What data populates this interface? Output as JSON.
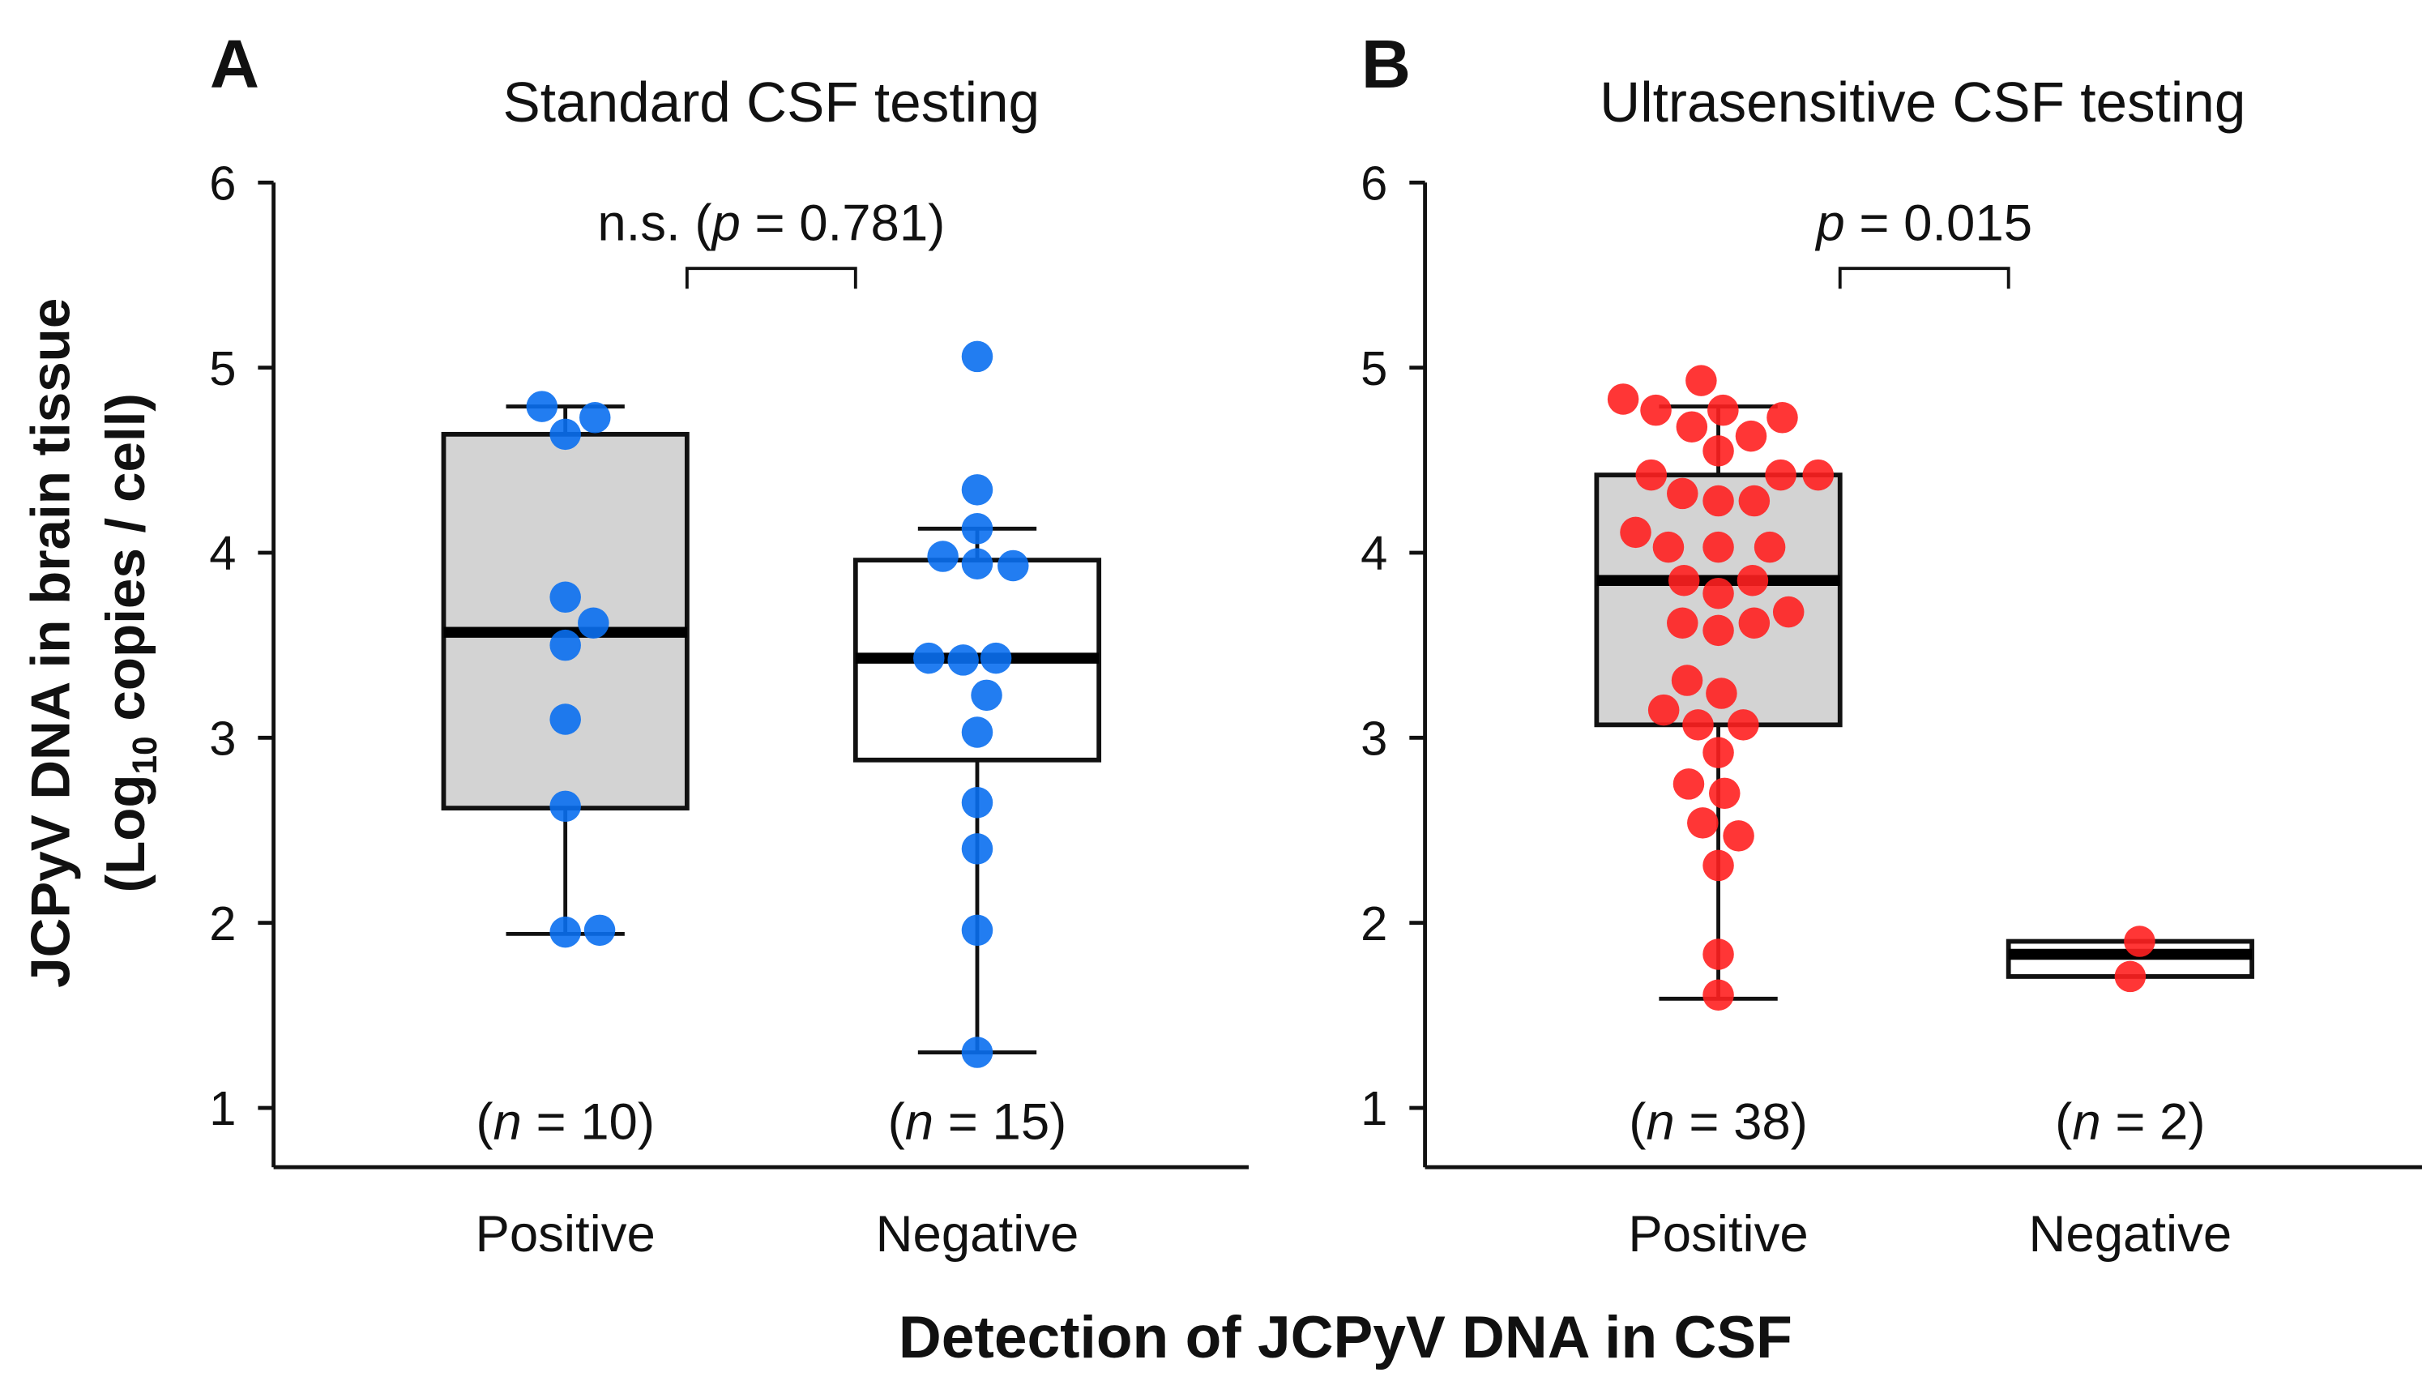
{
  "chart_data": [
    {
      "type": "box",
      "panel_letter": "A",
      "title": "Standard CSF testing",
      "ylim": [
        1,
        6
      ],
      "yticks": [
        "1",
        "2",
        "3",
        "4",
        "5",
        "6"
      ],
      "categories": [
        "Positive",
        "Negative"
      ],
      "n_labels": [
        "(n = 10)",
        "(n = 15)"
      ],
      "n_prefix": [
        "(",
        "("
      ],
      "n_italic": [
        "n",
        "n"
      ],
      "n_values": [
        " = 10)",
        " = 15)"
      ],
      "comparison": {
        "prefix": "n.s. (",
        "p_symbol": "p",
        "suffix": " = 0.781)"
      },
      "fill": [
        "#d3d3d3",
        "#ffffff"
      ],
      "point_color": "#0a6ff0",
      "groups": [
        {
          "name": "Positive",
          "q1": 2.62,
          "median": 3.57,
          "q3": 4.64,
          "whisker_low": 1.94,
          "whisker_high": 4.79,
          "points": [
            4.79,
            4.73,
            4.64,
            3.76,
            3.62,
            3.5,
            3.1,
            2.63,
            1.95,
            1.96
          ]
        },
        {
          "name": "Negative",
          "q1": 2.88,
          "median": 3.43,
          "q3": 3.96,
          "whisker_low": 1.3,
          "whisker_high": 4.13,
          "points": [
            5.06,
            4.34,
            4.13,
            3.98,
            3.94,
            3.93,
            3.43,
            3.42,
            3.43,
            3.23,
            3.03,
            2.65,
            2.4,
            1.96,
            1.3
          ]
        }
      ]
    },
    {
      "type": "box",
      "panel_letter": "B",
      "title": "Ultrasensitive CSF testing",
      "ylim": [
        1,
        6
      ],
      "yticks": [
        "1",
        "2",
        "3",
        "4",
        "5",
        "6"
      ],
      "categories": [
        "Positive",
        "Negative"
      ],
      "n_labels": [
        "(n = 38)",
        "(n = 2)"
      ],
      "n_prefix": [
        "(",
        "("
      ],
      "n_italic": [
        "n",
        "n"
      ],
      "n_values": [
        " = 38)",
        " = 2)"
      ],
      "comparison": {
        "prefix": "",
        "p_symbol": "p",
        "suffix": " = 0.015"
      },
      "fill": [
        "#d3d3d3",
        "#ffffff"
      ],
      "point_color": "#ff2020",
      "groups": [
        {
          "name": "Positive",
          "q1": 3.07,
          "median": 3.85,
          "q3": 4.42,
          "whisker_low": 1.59,
          "whisker_high": 4.79,
          "points": [
            4.93,
            4.83,
            4.77,
            4.77,
            4.73,
            4.68,
            4.63,
            4.55,
            4.42,
            4.42,
            4.42,
            4.32,
            4.28,
            4.28,
            4.11,
            4.03,
            4.03,
            4.03,
            3.85,
            3.85,
            3.78,
            3.68,
            3.62,
            3.62,
            3.58,
            3.31,
            3.24,
            3.15,
            3.07,
            3.07,
            2.92,
            2.75,
            2.7,
            2.54,
            2.47,
            2.31,
            1.83,
            1.61
          ]
        },
        {
          "name": "Negative",
          "q1": 1.71,
          "median": 1.83,
          "q3": 1.9,
          "whisker_low": 1.71,
          "whisker_high": 1.9,
          "points": [
            1.9,
            1.71
          ]
        }
      ]
    }
  ],
  "ylabel_line1": "JCPyV DNA in brain tissue",
  "ylabel_line2_pre": "(Log",
  "ylabel_line2_sub": "10",
  "ylabel_line2_post": " copies / cell)",
  "xlabel": "Detection of JCPyV DNA in CSF"
}
